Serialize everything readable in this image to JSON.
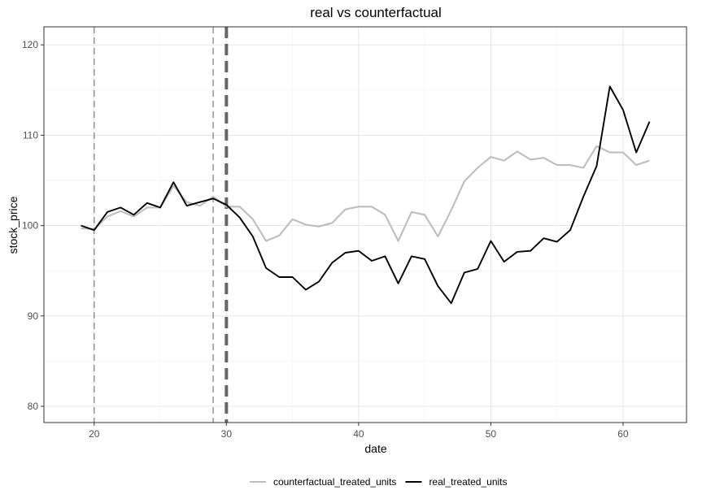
{
  "chart_data": {
    "type": "line",
    "title": "real vs counterfactual",
    "xlabel": "date",
    "ylabel": "stock_price",
    "xlim": [
      16.2,
      64.8
    ],
    "ylim": [
      78.2,
      122.0
    ],
    "x_ticks": [
      20,
      30,
      40,
      50,
      60
    ],
    "y_ticks": [
      80,
      90,
      100,
      110,
      120
    ],
    "grid": true,
    "legend_position": "bottom",
    "vlines": [
      {
        "x": 20,
        "style": "thin-dashed"
      },
      {
        "x": 29,
        "style": "thin-dashed"
      },
      {
        "x": 30,
        "style": "thick-dashed"
      }
    ],
    "x": [
      19,
      20,
      21,
      22,
      23,
      24,
      25,
      26,
      27,
      28,
      29,
      30,
      31,
      32,
      33,
      34,
      35,
      36,
      37,
      38,
      39,
      40,
      41,
      42,
      43,
      44,
      45,
      46,
      47,
      48,
      49,
      50,
      51,
      52,
      53,
      54,
      55,
      56,
      57,
      58,
      59,
      60,
      61,
      62
    ],
    "series": [
      {
        "name": "counterfactual_treated_units",
        "color": "#bdbdbd",
        "values": [
          99.7,
          99.6,
          101.0,
          101.6,
          101.0,
          102.0,
          102.0,
          104.4,
          102.6,
          102.2,
          103.2,
          102.1,
          102.1,
          100.7,
          98.3,
          98.9,
          100.7,
          100.1,
          99.9,
          100.3,
          101.8,
          102.1,
          102.1,
          101.2,
          98.3,
          101.5,
          101.2,
          98.8,
          101.7,
          104.9,
          106.4,
          107.6,
          107.2,
          108.2,
          107.3,
          107.5,
          106.7,
          106.7,
          106.4,
          108.8,
          108.1,
          108.1,
          106.7,
          107.2
        ]
      },
      {
        "name": "real_treated_units",
        "color": "#000000",
        "values": [
          100.0,
          99.5,
          101.5,
          102.0,
          101.2,
          102.5,
          102.0,
          104.8,
          102.2,
          102.6,
          103.0,
          102.3,
          100.9,
          98.8,
          95.3,
          94.3,
          94.3,
          92.9,
          93.8,
          95.9,
          97.0,
          97.2,
          96.1,
          96.6,
          93.6,
          96.6,
          96.3,
          93.3,
          91.4,
          94.8,
          95.2,
          98.3,
          96.0,
          97.1,
          97.2,
          98.6,
          98.2,
          99.5,
          103.2,
          106.6,
          115.4,
          112.8,
          108.1,
          111.5
        ]
      }
    ]
  }
}
